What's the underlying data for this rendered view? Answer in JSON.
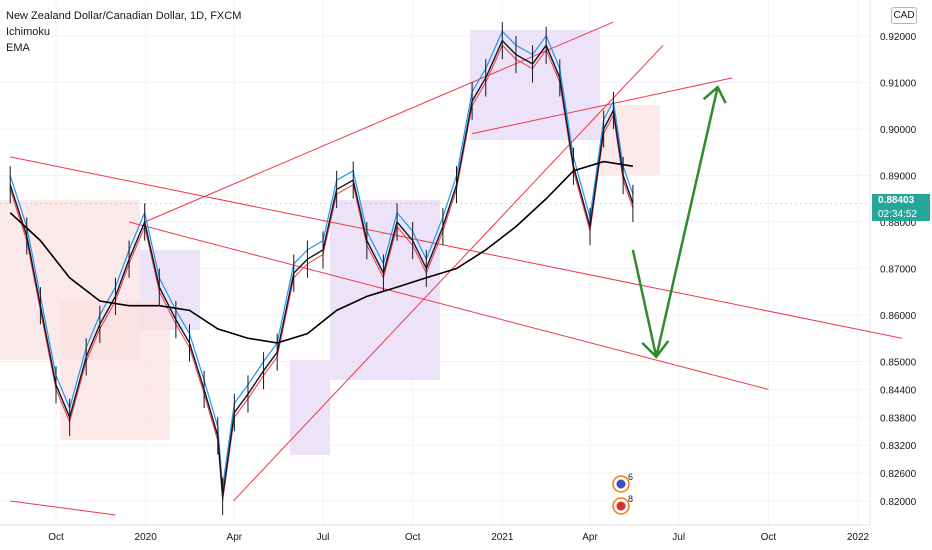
{
  "header": {
    "instrument": "New Zealand Dollar/Canadian Dollar, 1D, FXCM",
    "indicators": [
      "Ichimoku",
      "EMA"
    ],
    "currency_badge": "CAD"
  },
  "price_label": {
    "price": "0.88403",
    "countdown": "02:34:52",
    "color": "#26a69a"
  },
  "event_markers": [
    {
      "icon": "new-zealand-flag-icon",
      "count": "6"
    },
    {
      "icon": "canada-flag-icon",
      "count": "8"
    }
  ],
  "colors": {
    "background": "#ffffff",
    "grid": "#f0f3fa",
    "trendline": "#f23645",
    "forecast_arrow": "#2e8b2e",
    "ema": "#000000",
    "kijun": "#2196f3",
    "tenkan": "#f23645",
    "cloud_bull": "#e6d7f5",
    "cloud_bear": "#fbe0e0",
    "candle": "#131722"
  },
  "chart_data": {
    "type": "line",
    "y_ticks": [
      "0.92000",
      "0.91000",
      "0.90000",
      "0.89000",
      "0.88000",
      "0.87000",
      "0.86000",
      "0.85000",
      "0.84400",
      "0.83800",
      "0.83200",
      "0.82600",
      "0.82000"
    ],
    "x_ticks": [
      "Oct",
      "2020",
      "Apr",
      "Jul",
      "Oct",
      "2021",
      "Apr",
      "Jul",
      "Oct",
      "2022"
    ],
    "grid": true,
    "series": [
      {
        "key": "close",
        "points": [
          [
            "2019-08-15",
            0.888
          ],
          [
            "2019-09-01",
            0.877
          ],
          [
            "2019-09-15",
            0.862
          ],
          [
            "2019-10-01",
            0.845
          ],
          [
            "2019-10-15",
            0.838
          ],
          [
            "2019-11-01",
            0.851
          ],
          [
            "2019-11-15",
            0.858
          ],
          [
            "2019-12-01",
            0.864
          ],
          [
            "2019-12-15",
            0.872
          ],
          [
            "2019-12-31",
            0.88
          ],
          [
            "2020-01-15",
            0.866
          ],
          [
            "2020-02-01",
            0.859
          ],
          [
            "2020-02-15",
            0.854
          ],
          [
            "2020-03-01",
            0.844
          ],
          [
            "2020-03-15",
            0.834
          ],
          [
            "2020-03-20",
            0.821
          ],
          [
            "2020-04-01",
            0.839
          ],
          [
            "2020-04-15",
            0.843
          ],
          [
            "2020-05-01",
            0.848
          ],
          [
            "2020-05-15",
            0.852
          ],
          [
            "2020-06-01",
            0.869
          ],
          [
            "2020-06-15",
            0.872
          ],
          [
            "2020-07-01",
            0.874
          ],
          [
            "2020-07-15",
            0.887
          ],
          [
            "2020-08-01",
            0.889
          ],
          [
            "2020-08-15",
            0.876
          ],
          [
            "2020-09-01",
            0.869
          ],
          [
            "2020-09-15",
            0.88
          ],
          [
            "2020-10-01",
            0.876
          ],
          [
            "2020-10-15",
            0.87
          ],
          [
            "2020-11-01",
            0.879
          ],
          [
            "2020-11-15",
            0.888
          ],
          [
            "2020-12-01",
            0.906
          ],
          [
            "2020-12-15",
            0.911
          ],
          [
            "2021-01-01",
            0.919
          ],
          [
            "2021-01-15",
            0.916
          ],
          [
            "2021-02-01",
            0.914
          ],
          [
            "2021-02-15",
            0.918
          ],
          [
            "2021-03-01",
            0.911
          ],
          [
            "2021-03-15",
            0.892
          ],
          [
            "2021-04-01",
            0.879
          ],
          [
            "2021-04-15",
            0.9
          ],
          [
            "2021-04-25",
            0.904
          ],
          [
            "2021-05-05",
            0.89
          ],
          [
            "2021-05-15",
            0.884
          ]
        ]
      },
      {
        "key": "ema",
        "points": [
          [
            "2019-08-15",
            0.882
          ],
          [
            "2019-09-15",
            0.876
          ],
          [
            "2019-10-15",
            0.868
          ],
          [
            "2019-11-15",
            0.863
          ],
          [
            "2019-12-15",
            0.862
          ],
          [
            "2020-01-15",
            0.862
          ],
          [
            "2020-02-15",
            0.861
          ],
          [
            "2020-03-15",
            0.857
          ],
          [
            "2020-04-15",
            0.855
          ],
          [
            "2020-05-15",
            0.854
          ],
          [
            "2020-06-15",
            0.856
          ],
          [
            "2020-07-15",
            0.861
          ],
          [
            "2020-08-15",
            0.864
          ],
          [
            "2020-09-15",
            0.866
          ],
          [
            "2020-10-15",
            0.868
          ],
          [
            "2020-11-15",
            0.87
          ],
          [
            "2020-12-15",
            0.874
          ],
          [
            "2021-01-15",
            0.879
          ],
          [
            "2021-02-15",
            0.885
          ],
          [
            "2021-03-15",
            0.891
          ],
          [
            "2021-04-15",
            0.893
          ],
          [
            "2021-05-15",
            0.892
          ]
        ]
      }
    ],
    "trendlines": [
      {
        "from": [
          "2019-08-15",
          0.894
        ],
        "to": [
          "2022-02-15",
          0.855
        ]
      },
      {
        "from": [
          "2019-12-15",
          0.88
        ],
        "to": [
          "2021-10-01",
          0.844
        ]
      },
      {
        "from": [
          "2019-12-31",
          0.88
        ],
        "to": [
          "2021-04-25",
          0.923
        ]
      },
      {
        "from": [
          "2020-03-31",
          0.82
        ],
        "to": [
          "2021-06-15",
          0.918
        ]
      },
      {
        "from": [
          "2020-12-01",
          0.899
        ],
        "to": [
          "2021-08-25",
          0.911
        ]
      },
      {
        "from": [
          "2019-08-15",
          0.82
        ],
        "to": [
          "2019-12-01",
          0.817
        ]
      }
    ],
    "forecast_arrow": [
      [
        "2021-05-15",
        0.874
      ],
      [
        "2021-06-08",
        0.851
      ],
      [
        "2021-08-10",
        0.909
      ]
    ]
  }
}
